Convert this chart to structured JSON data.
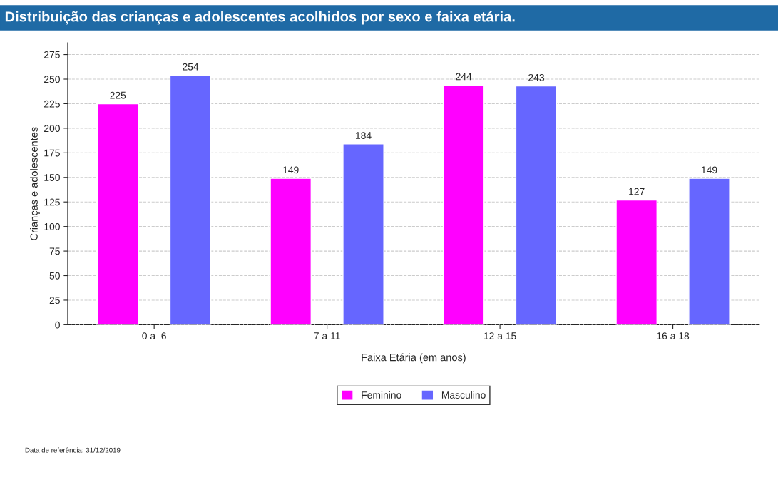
{
  "chart_data": {
    "type": "bar",
    "title": "Distribuição das crianças e adolescentes acolhidos por sexo e faixa etária.",
    "xlabel": "Faixa Etária (em anos)",
    "ylabel": "Crianças e adolescentes",
    "categories": [
      "0 a  6",
      "7 a 11",
      "12 a 15",
      "16 a 18"
    ],
    "series": [
      {
        "name": "Feminino",
        "color": "#ff00ff",
        "values": [
          225,
          149,
          244,
          127
        ]
      },
      {
        "name": "Masculino",
        "color": "#6666ff",
        "values": [
          254,
          184,
          243,
          149
        ]
      }
    ],
    "ylim": [
      0,
      287
    ],
    "yticks": [
      0,
      25,
      50,
      75,
      100,
      125,
      150,
      175,
      200,
      225,
      250,
      275
    ],
    "grid": "y",
    "data_labels": true,
    "legend": "bottom",
    "annotations": [
      "Data de referência: 31/12/2019"
    ]
  }
}
